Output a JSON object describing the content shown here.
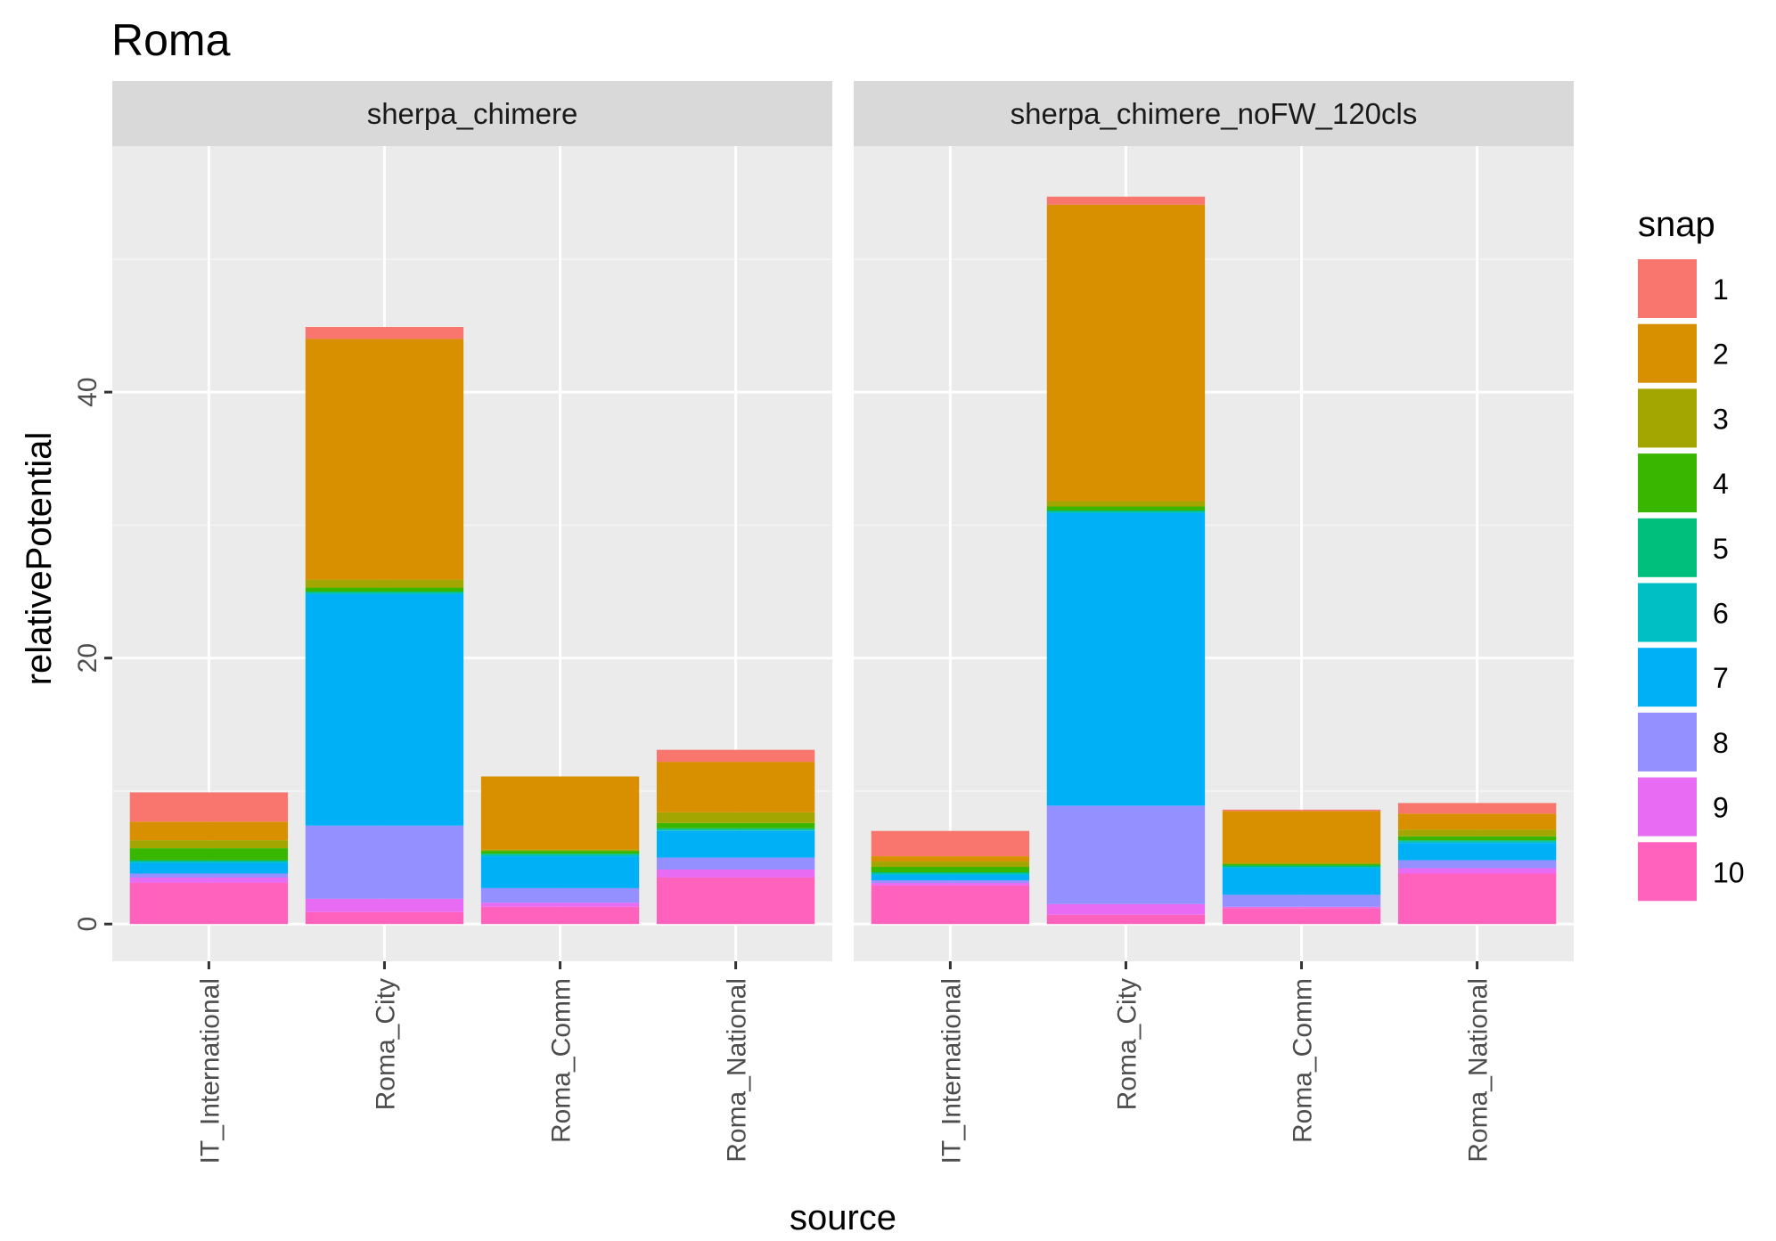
{
  "chart_data": {
    "type": "bar",
    "stacked": true,
    "title": "Roma",
    "xlabel": "source",
    "ylabel": "relativePotential",
    "ylim": [
      -2.8,
      58.5
    ],
    "yticks": [
      0,
      20,
      40
    ],
    "categories": [
      "IT_International",
      "Roma_City",
      "Roma_Comm",
      "Roma_National"
    ],
    "legend": {
      "title": "snap",
      "position": "right",
      "entries": [
        "1",
        "2",
        "3",
        "4",
        "5",
        "6",
        "7",
        "8",
        "9",
        "10"
      ]
    },
    "colors": {
      "1": "#F8766D",
      "2": "#D89000",
      "3": "#A3A500",
      "4": "#39B600",
      "5": "#00BF7D",
      "6": "#00BFC4",
      "7": "#00B0F6",
      "8": "#9590FF",
      "9": "#E76BF3",
      "10": "#FF62BC"
    },
    "panels": [
      {
        "name": "sherpa_chimere",
        "stack_values": {
          "IT_International": {
            "10": 3.1,
            "9": 0.4,
            "8": 0.3,
            "7": 0.8,
            "6": 0.1,
            "5": 0.1,
            "4": 0.9,
            "3": 0.6,
            "2": 1.4,
            "1": 2.2
          },
          "Roma_City": {
            "10": 0.9,
            "9": 1.0,
            "8": 5.5,
            "7": 17.4,
            "6": 0.1,
            "5": 0.1,
            "4": 0.3,
            "3": 0.6,
            "2": 18.1,
            "1": 0.9
          },
          "Roma_Comm": {
            "10": 1.3,
            "9": 0.3,
            "8": 1.1,
            "7": 2.4,
            "6": 0.1,
            "5": 0.1,
            "4": 0.2,
            "3": 0.1,
            "2": 5.5,
            "1": 0.0
          },
          "Roma_National": {
            "10": 3.5,
            "9": 0.6,
            "8": 0.9,
            "7": 2.0,
            "6": 0.1,
            "5": 0.1,
            "4": 0.4,
            "3": 0.8,
            "2": 3.8,
            "1": 0.9
          }
        }
      },
      {
        "name": "sherpa_chimere_noFW_120cls",
        "stack_values": {
          "IT_International": {
            "10": 2.9,
            "9": 0.2,
            "8": 0.2,
            "7": 0.4,
            "6": 0.1,
            "5": 0.1,
            "4": 0.4,
            "3": 0.4,
            "2": 0.4,
            "1": 1.9
          },
          "Roma_City": {
            "10": 0.7,
            "9": 0.8,
            "8": 7.4,
            "7": 22.0,
            "6": 0.1,
            "5": 0.1,
            "4": 0.3,
            "3": 0.4,
            "2": 22.3,
            "1": 0.6
          },
          "Roma_Comm": {
            "10": 1.2,
            "9": 0.1,
            "8": 0.9,
            "7": 2.0,
            "6": 0.1,
            "5": 0.1,
            "4": 0.1,
            "3": 0.1,
            "2": 3.9,
            "1": 0.1
          },
          "Roma_National": {
            "10": 3.8,
            "9": 0.4,
            "8": 0.6,
            "7": 1.3,
            "6": 0.1,
            "5": 0.1,
            "4": 0.3,
            "3": 0.5,
            "2": 1.2,
            "1": 0.8
          }
        }
      }
    ]
  }
}
